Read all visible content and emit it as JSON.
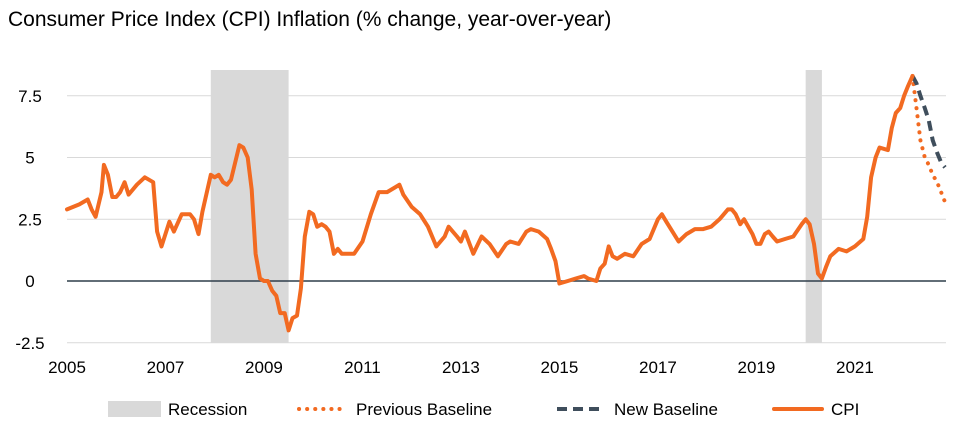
{
  "chart_data": {
    "type": "line",
    "title": "Consumer Price Index (CPI) Inflation (% change, year-over-year)",
    "xlabel": "",
    "ylabel": "",
    "xlim": [
      2005,
      2022.85
    ],
    "ylim": [
      -2.5,
      8.5
    ],
    "x_ticks": [
      {
        "value": 2005,
        "label": "2005"
      },
      {
        "value": 2007,
        "label": "2007"
      },
      {
        "value": 2009,
        "label": "2009"
      },
      {
        "value": 2011,
        "label": "2011"
      },
      {
        "value": 2013,
        "label": "2013"
      },
      {
        "value": 2015,
        "label": "2015"
      },
      {
        "value": 2017,
        "label": "2017"
      },
      {
        "value": 2019,
        "label": "2019"
      },
      {
        "value": 2021,
        "label": "2021"
      }
    ],
    "y_ticks": [
      {
        "value": 7.5,
        "label": "7.5"
      },
      {
        "value": 5,
        "label": "5"
      },
      {
        "value": 2.5,
        "label": "2.5"
      },
      {
        "value": 0,
        "label": "0"
      },
      {
        "value": -2.5,
        "label": "-2.5"
      }
    ],
    "grid": true,
    "legend_position": "bottom",
    "recessions": [
      {
        "start": 2007.92,
        "end": 2009.5
      },
      {
        "start": 2020.0,
        "end": 2020.33
      }
    ],
    "series": [
      {
        "name": "CPI",
        "style": "solid",
        "color": "#F26A21",
        "points": [
          [
            2005.0,
            2.9
          ],
          [
            2005.25,
            3.1
          ],
          [
            2005.42,
            3.3
          ],
          [
            2005.5,
            2.9
          ],
          [
            2005.58,
            2.6
          ],
          [
            2005.7,
            3.6
          ],
          [
            2005.75,
            4.7
          ],
          [
            2005.83,
            4.3
          ],
          [
            2005.92,
            3.4
          ],
          [
            2006.0,
            3.4
          ],
          [
            2006.08,
            3.6
          ],
          [
            2006.17,
            4.0
          ],
          [
            2006.25,
            3.5
          ],
          [
            2006.42,
            3.9
          ],
          [
            2006.58,
            4.2
          ],
          [
            2006.75,
            4.0
          ],
          [
            2006.83,
            2.0
          ],
          [
            2006.92,
            1.4
          ],
          [
            2007.08,
            2.4
          ],
          [
            2007.17,
            2.0
          ],
          [
            2007.33,
            2.7
          ],
          [
            2007.5,
            2.7
          ],
          [
            2007.58,
            2.5
          ],
          [
            2007.67,
            1.9
          ],
          [
            2007.75,
            2.8
          ],
          [
            2007.92,
            4.3
          ],
          [
            2008.0,
            4.2
          ],
          [
            2008.08,
            4.3
          ],
          [
            2008.17,
            4.0
          ],
          [
            2008.25,
            3.9
          ],
          [
            2008.33,
            4.1
          ],
          [
            2008.5,
            5.5
          ],
          [
            2008.58,
            5.4
          ],
          [
            2008.67,
            5.0
          ],
          [
            2008.75,
            3.7
          ],
          [
            2008.83,
            1.1
          ],
          [
            2008.92,
            0.1
          ],
          [
            2009.0,
            0.0
          ],
          [
            2009.08,
            0.0
          ],
          [
            2009.17,
            -0.4
          ],
          [
            2009.25,
            -0.6
          ],
          [
            2009.33,
            -1.3
          ],
          [
            2009.42,
            -1.3
          ],
          [
            2009.5,
            -2.0
          ],
          [
            2009.58,
            -1.5
          ],
          [
            2009.67,
            -1.4
          ],
          [
            2009.75,
            -0.3
          ],
          [
            2009.83,
            1.8
          ],
          [
            2009.92,
            2.8
          ],
          [
            2010.0,
            2.7
          ],
          [
            2010.08,
            2.2
          ],
          [
            2010.17,
            2.3
          ],
          [
            2010.25,
            2.2
          ],
          [
            2010.33,
            2.0
          ],
          [
            2010.42,
            1.1
          ],
          [
            2010.5,
            1.3
          ],
          [
            2010.58,
            1.1
          ],
          [
            2010.67,
            1.1
          ],
          [
            2010.83,
            1.1
          ],
          [
            2011.0,
            1.6
          ],
          [
            2011.17,
            2.7
          ],
          [
            2011.33,
            3.6
          ],
          [
            2011.5,
            3.6
          ],
          [
            2011.67,
            3.8
          ],
          [
            2011.75,
            3.9
          ],
          [
            2011.83,
            3.5
          ],
          [
            2012.0,
            3.0
          ],
          [
            2012.17,
            2.7
          ],
          [
            2012.33,
            2.2
          ],
          [
            2012.5,
            1.4
          ],
          [
            2012.67,
            1.8
          ],
          [
            2012.75,
            2.2
          ],
          [
            2012.92,
            1.8
          ],
          [
            2013.0,
            1.6
          ],
          [
            2013.08,
            2.0
          ],
          [
            2013.25,
            1.1
          ],
          [
            2013.42,
            1.8
          ],
          [
            2013.58,
            1.5
          ],
          [
            2013.75,
            1.0
          ],
          [
            2013.92,
            1.5
          ],
          [
            2014.0,
            1.6
          ],
          [
            2014.17,
            1.5
          ],
          [
            2014.33,
            2.0
          ],
          [
            2014.42,
            2.1
          ],
          [
            2014.58,
            2.0
          ],
          [
            2014.75,
            1.7
          ],
          [
            2014.83,
            1.3
          ],
          [
            2014.92,
            0.8
          ],
          [
            2015.0,
            -0.1
          ],
          [
            2015.17,
            0.0
          ],
          [
            2015.33,
            0.1
          ],
          [
            2015.5,
            0.2
          ],
          [
            2015.58,
            0.1
          ],
          [
            2015.75,
            0.0
          ],
          [
            2015.83,
            0.5
          ],
          [
            2015.92,
            0.7
          ],
          [
            2016.0,
            1.4
          ],
          [
            2016.08,
            1.0
          ],
          [
            2016.17,
            0.9
          ],
          [
            2016.33,
            1.1
          ],
          [
            2016.5,
            1.0
          ],
          [
            2016.67,
            1.5
          ],
          [
            2016.83,
            1.7
          ],
          [
            2017.0,
            2.5
          ],
          [
            2017.08,
            2.7
          ],
          [
            2017.17,
            2.4
          ],
          [
            2017.42,
            1.6
          ],
          [
            2017.58,
            1.9
          ],
          [
            2017.75,
            2.1
          ],
          [
            2017.92,
            2.1
          ],
          [
            2018.08,
            2.2
          ],
          [
            2018.25,
            2.5
          ],
          [
            2018.42,
            2.9
          ],
          [
            2018.5,
            2.9
          ],
          [
            2018.58,
            2.7
          ],
          [
            2018.67,
            2.3
          ],
          [
            2018.75,
            2.5
          ],
          [
            2018.92,
            1.9
          ],
          [
            2019.0,
            1.5
          ],
          [
            2019.08,
            1.5
          ],
          [
            2019.17,
            1.9
          ],
          [
            2019.25,
            2.0
          ],
          [
            2019.33,
            1.8
          ],
          [
            2019.42,
            1.6
          ],
          [
            2019.58,
            1.7
          ],
          [
            2019.75,
            1.8
          ],
          [
            2019.92,
            2.3
          ],
          [
            2020.0,
            2.5
          ],
          [
            2020.08,
            2.3
          ],
          [
            2020.17,
            1.5
          ],
          [
            2020.25,
            0.3
          ],
          [
            2020.33,
            0.1
          ],
          [
            2020.42,
            0.6
          ],
          [
            2020.5,
            1.0
          ],
          [
            2020.67,
            1.3
          ],
          [
            2020.83,
            1.2
          ],
          [
            2021.0,
            1.4
          ],
          [
            2021.17,
            1.7
          ],
          [
            2021.25,
            2.6
          ],
          [
            2021.33,
            4.2
          ],
          [
            2021.42,
            5.0
          ],
          [
            2021.5,
            5.4
          ],
          [
            2021.67,
            5.3
          ],
          [
            2021.75,
            6.2
          ],
          [
            2021.83,
            6.8
          ],
          [
            2021.92,
            7.0
          ],
          [
            2022.0,
            7.5
          ],
          [
            2022.08,
            7.9
          ],
          [
            2022.17,
            8.3
          ]
        ]
      },
      {
        "name": "Previous Baseline",
        "style": "dotted",
        "color": "#F26A21",
        "points": [
          [
            2022.17,
            8.3
          ],
          [
            2022.25,
            7.0
          ],
          [
            2022.33,
            5.7
          ],
          [
            2022.42,
            5.0
          ],
          [
            2022.5,
            4.7
          ],
          [
            2022.58,
            4.3
          ],
          [
            2022.67,
            4.0
          ],
          [
            2022.75,
            3.6
          ],
          [
            2022.83,
            3.2
          ]
        ]
      },
      {
        "name": "New Baseline",
        "style": "dashed",
        "color": "#3F4E5C",
        "points": [
          [
            2022.17,
            8.3
          ],
          [
            2022.25,
            8.0
          ],
          [
            2022.33,
            7.5
          ],
          [
            2022.42,
            7.0
          ],
          [
            2022.5,
            6.5
          ],
          [
            2022.58,
            5.7
          ],
          [
            2022.67,
            5.2
          ],
          [
            2022.75,
            4.8
          ],
          [
            2022.83,
            4.6
          ]
        ]
      }
    ],
    "legend": [
      {
        "label": "Recession",
        "kind": "area",
        "color": "#D9D9D9"
      },
      {
        "label": "Previous Baseline",
        "kind": "dotted",
        "color": "#F26A21"
      },
      {
        "label": "New Baseline",
        "kind": "dashed",
        "color": "#3F4E5C"
      },
      {
        "label": "CPI",
        "kind": "solid",
        "color": "#F26A21"
      }
    ]
  }
}
